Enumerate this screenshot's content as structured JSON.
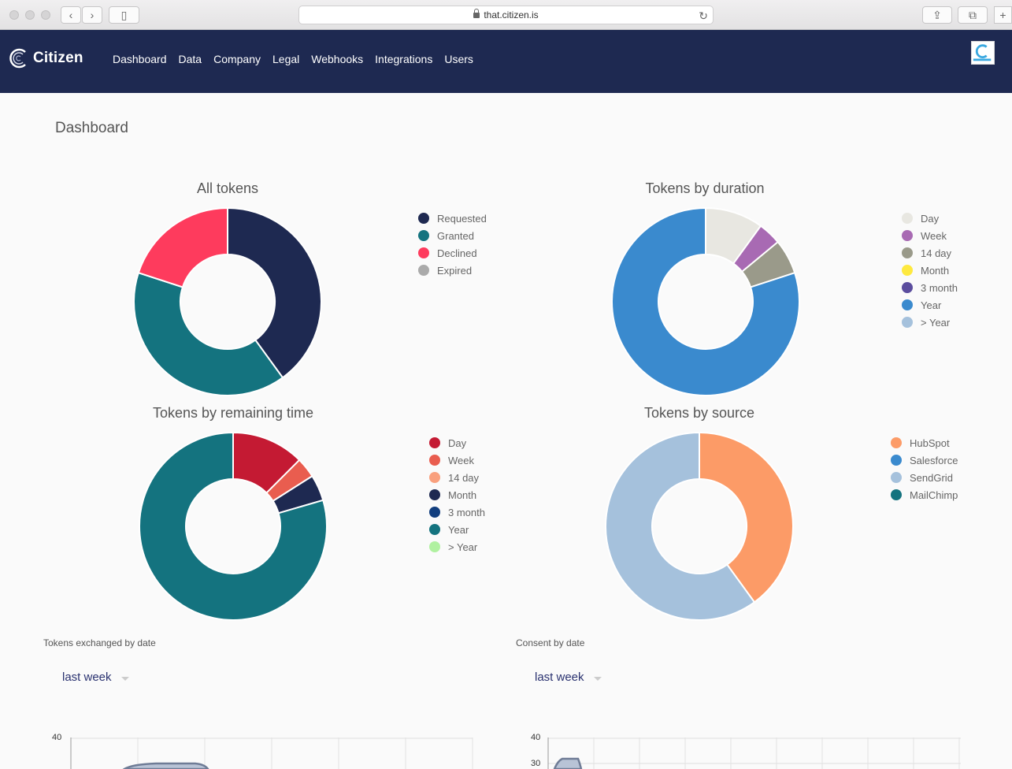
{
  "browser": {
    "url": "that.citizen.is"
  },
  "nav": {
    "brand": "Citizen",
    "items": [
      "Dashboard",
      "Data",
      "Company",
      "Legal",
      "Webhooks",
      "Integrations",
      "Users"
    ]
  },
  "page": {
    "title": "Dashboard"
  },
  "charts": {
    "all_tokens": {
      "title": "All tokens",
      "legend": [
        "Requested",
        "Granted",
        "Declined",
        "Expired"
      ]
    },
    "duration": {
      "title": "Tokens by duration",
      "legend": [
        "Day",
        "Week",
        "14 day",
        "Month",
        "3 month",
        "Year",
        "> Year"
      ]
    },
    "remaining": {
      "title": "Tokens by remaining time",
      "legend": [
        "Day",
        "Week",
        "14 day",
        "Month",
        "3 month",
        "Year",
        "> Year"
      ]
    },
    "source": {
      "title": "Tokens by source",
      "legend": [
        "HubSpot",
        "Salesforce",
        "SendGrid",
        "MailChimp"
      ]
    },
    "exchanged": {
      "title": "Tokens exchanged by date",
      "range": "last week",
      "yticks": [
        "40"
      ]
    },
    "consent": {
      "title": "Consent by date",
      "range": "last week",
      "yticks": [
        "40",
        "30"
      ]
    }
  },
  "chart_data": [
    {
      "type": "pie",
      "title": "All tokens",
      "categories": [
        "Requested",
        "Granted",
        "Declined",
        "Expired"
      ],
      "values": [
        40,
        40,
        20,
        0
      ],
      "colors": [
        "#1e2951",
        "#14737f",
        "#fe3b5d",
        "#aaaaaa"
      ]
    },
    {
      "type": "pie",
      "title": "Tokens by duration",
      "categories": [
        "Day",
        "Week",
        "14 day",
        "Month",
        "3 month",
        "Year",
        "> Year"
      ],
      "values": [
        10,
        4,
        6,
        0,
        0,
        80,
        0
      ],
      "colors": [
        "#e8e7e1",
        "#a86ab3",
        "#9a9a8a",
        "#fee93f",
        "#5b4d9e",
        "#3a8ace",
        "#a5c1dc"
      ],
      "draw_order_colors": [
        "#e8e7e1",
        "#a86ab3",
        "#fee93f",
        "#3a8ace"
      ]
    },
    {
      "type": "pie",
      "title": "Tokens by remaining time",
      "categories": [
        "Day",
        "Week",
        "14 day",
        "Month",
        "3 month",
        "Year",
        "> Year"
      ],
      "values": [
        12.5,
        3.5,
        0,
        4.5,
        0,
        79.5,
        0
      ],
      "colors": [
        "#c41a33",
        "#e95d4f",
        "#f9a07e",
        "#1e2951",
        "#123e7e",
        "#14737f",
        "#b0f1a0"
      ]
    },
    {
      "type": "pie",
      "title": "Tokens by source",
      "categories": [
        "HubSpot",
        "Salesforce",
        "SendGrid",
        "MailChimp"
      ],
      "values": [
        40,
        0,
        60,
        0
      ],
      "colors": [
        "#fc9b67",
        "#3a8ace",
        "#a5c1dc",
        "#14737f"
      ]
    }
  ],
  "colors": {
    "nav_bg": "#1e2951",
    "page_bg": "#fafafa"
  }
}
